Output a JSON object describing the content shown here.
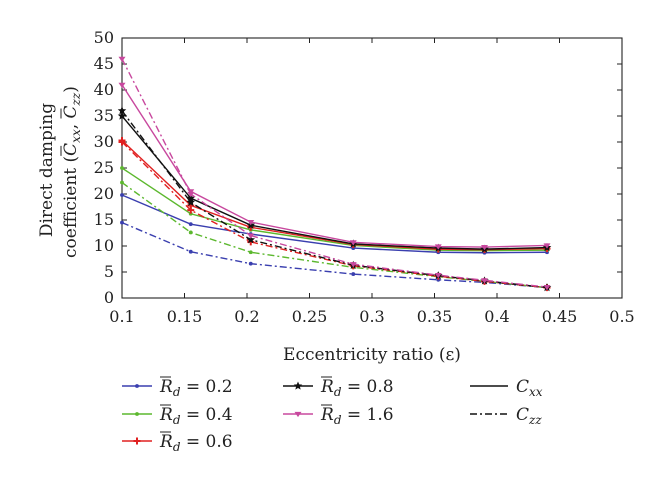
{
  "chart_data": {
    "type": "line",
    "title": "",
    "xlabel": "Eccentricity ratio (ε)",
    "ylabel_line1": "Direct damping",
    "ylabel_line2_prefix": "coefficient (",
    "ylabel_line2_suffix": ")",
    "ylabel_cxx": "C",
    "ylabel_cxx_sub": "xx",
    "ylabel_czz": "C",
    "ylabel_czz_sub": "zz",
    "xlim": [
      0.1,
      0.5
    ],
    "ylim": [
      0,
      50
    ],
    "xticks": [
      "0.1",
      "0.15",
      "0.2",
      "0.25",
      "0.3",
      "0.35",
      "0.4",
      "0.45",
      "0.5"
    ],
    "yticks": [
      "0",
      "5",
      "10",
      "15",
      "20",
      "25",
      "30",
      "35",
      "40",
      "45",
      "50"
    ],
    "grid": false,
    "legend_placement": "bottom",
    "x": [
      0.1,
      0.155,
      0.203,
      0.285,
      0.353,
      0.39,
      0.44
    ],
    "series": [
      {
        "name": "R_d = 0.2 (Cxx)",
        "group": 0,
        "style": "solid",
        "color": "#3a3faf",
        "marker": "dot",
        "values": [
          19.8,
          14.2,
          12.3,
          9.6,
          8.8,
          8.7,
          8.8
        ]
      },
      {
        "name": "R_d = 0.2 (Czz)",
        "group": 0,
        "style": "dashdot",
        "color": "#3a3faf",
        "marker": "dot",
        "values": [
          14.5,
          8.9,
          6.6,
          4.6,
          3.5,
          3.0,
          2.0
        ]
      },
      {
        "name": "R_d = 0.4 (Cxx)",
        "group": 1,
        "style": "solid",
        "color": "#5cb82e",
        "marker": "dot",
        "values": [
          25.0,
          16.2,
          13.1,
          10.1,
          9.2,
          9.1,
          9.2
        ]
      },
      {
        "name": "R_d = 0.4 (Czz)",
        "group": 1,
        "style": "dashdot",
        "color": "#5cb82e",
        "marker": "dot",
        "values": [
          22.2,
          12.6,
          8.8,
          5.9,
          4.1,
          3.2,
          2.0
        ]
      },
      {
        "name": "R_d = 0.6 (Cxx)",
        "group": 2,
        "style": "solid",
        "color": "#e02020",
        "marker": "plus",
        "values": [
          30.3,
          17.8,
          13.6,
          10.3,
          9.4,
          9.3,
          9.5
        ]
      },
      {
        "name": "R_d = 0.6 (Czz)",
        "group": 2,
        "style": "dashdot",
        "color": "#e02020",
        "marker": "plus",
        "values": [
          30.0,
          16.9,
          10.8,
          6.2,
          4.2,
          3.2,
          2.0
        ]
      },
      {
        "name": "R_d = 0.8 (Cxx)",
        "group": 3,
        "style": "solid",
        "color": "#111111",
        "marker": "star",
        "values": [
          35.0,
          19.2,
          14.0,
          10.4,
          9.6,
          9.4,
          9.7
        ]
      },
      {
        "name": "R_d = 0.8 (Czz)",
        "group": 3,
        "style": "dashdot",
        "color": "#111111",
        "marker": "star",
        "values": [
          36.0,
          18.4,
          11.2,
          6.3,
          4.3,
          3.3,
          2.0
        ]
      },
      {
        "name": "R_d = 1.6 (Cxx)",
        "group": 4,
        "style": "solid",
        "color": "#c8489e",
        "marker": "tri",
        "values": [
          41.0,
          20.5,
          14.6,
          10.7,
          9.9,
          9.8,
          10.1
        ]
      },
      {
        "name": "R_d = 1.6 (Czz)",
        "group": 4,
        "style": "dashdot",
        "color": "#c8489e",
        "marker": "tri",
        "values": [
          46.0,
          20.0,
          12.0,
          6.5,
          4.4,
          3.4,
          2.1
        ]
      }
    ],
    "legend": [
      {
        "var": "R",
        "sub": "d",
        "eq": " = 0.2",
        "color": "#3a3faf",
        "marker": "dot"
      },
      {
        "var": "R",
        "sub": "d",
        "eq": " = 0.4",
        "color": "#5cb82e",
        "marker": "dot"
      },
      {
        "var": "R",
        "sub": "d",
        "eq": " = 0.6",
        "color": "#e02020",
        "marker": "plus"
      },
      {
        "var": "R",
        "sub": "d",
        "eq": " = 0.8",
        "color": "#111111",
        "marker": "star"
      },
      {
        "var": "R",
        "sub": "d",
        "eq": " = 1.6",
        "color": "#c8489e",
        "marker": "tri"
      }
    ],
    "legend_styles": [
      {
        "var": "C",
        "sub": "xx",
        "style": "solid"
      },
      {
        "var": "C",
        "sub": "zz",
        "style": "dashdot"
      }
    ]
  }
}
